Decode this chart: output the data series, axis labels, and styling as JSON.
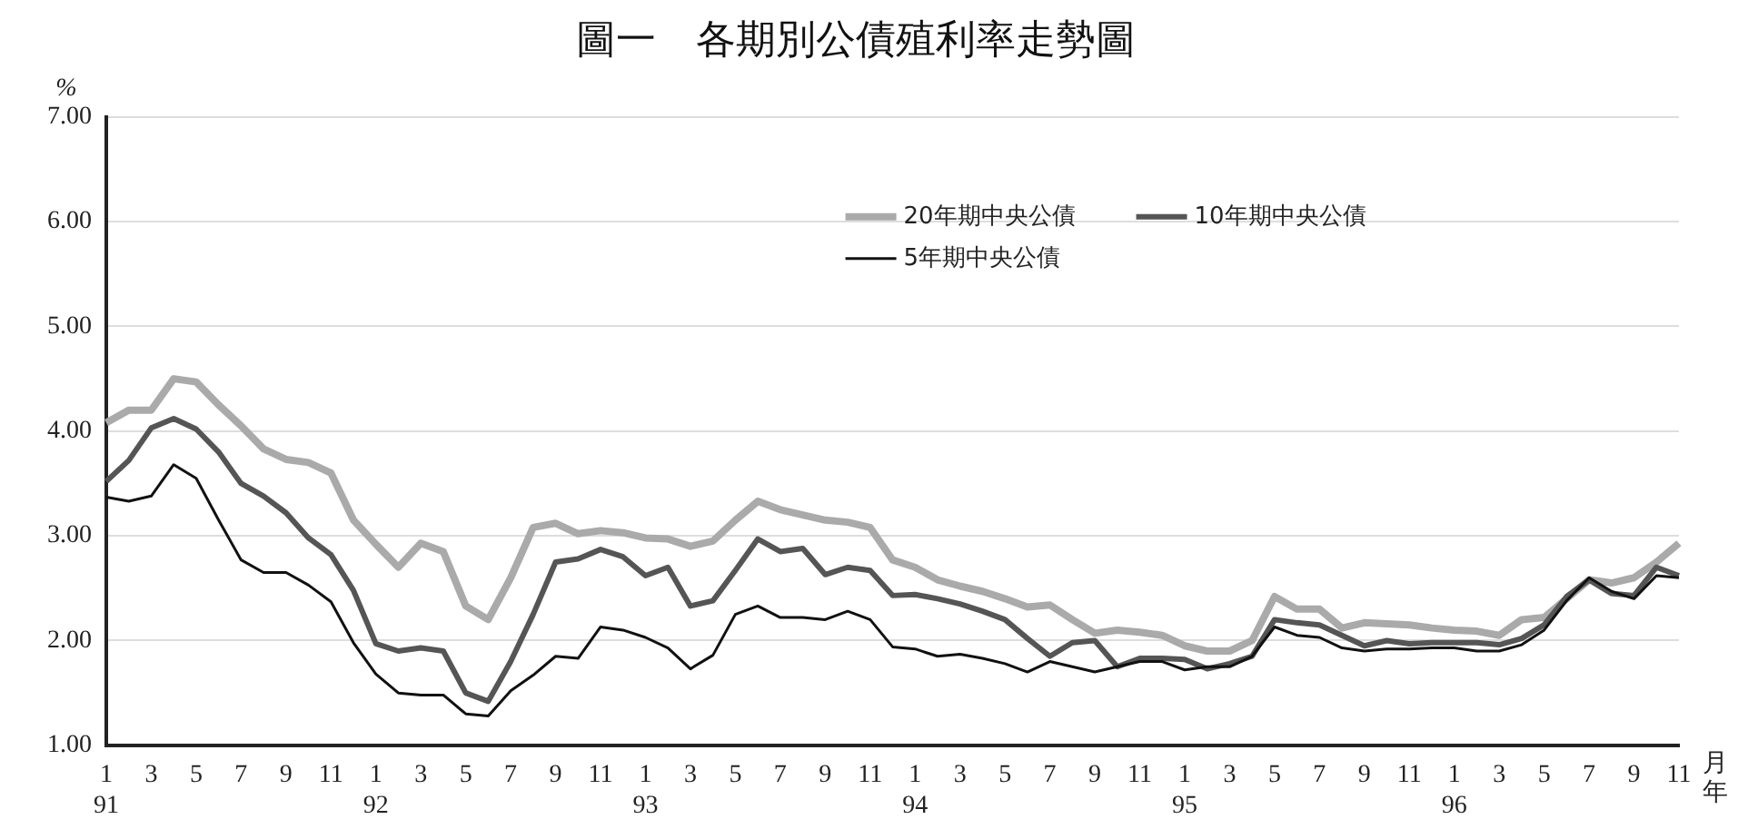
{
  "chart_data": {
    "type": "line",
    "title": "圖一　各期別公債殖利率走勢圖",
    "ylabel": "%",
    "xlabel": "月年",
    "categories": [
      "1\n91",
      null,
      "3",
      null,
      "5",
      null,
      "7",
      null,
      "9",
      null,
      "11",
      null,
      "1\n92",
      null,
      "3",
      null,
      "5",
      null,
      "7",
      null,
      "9",
      null,
      "11",
      null,
      "1\n93",
      null,
      "3",
      null,
      "5",
      null,
      "7",
      null,
      "9",
      null,
      "11",
      null,
      "1\n94",
      null,
      "3",
      null,
      "5",
      null,
      "7",
      null,
      "9",
      null,
      "11",
      null,
      "1\n95",
      null,
      "3",
      null,
      "5",
      null,
      "7",
      null,
      "9",
      null,
      "11",
      null,
      "1\n96",
      null,
      "3",
      null,
      "5",
      null,
      "7",
      null,
      "9",
      null,
      "11"
    ],
    "series": [
      {
        "name": "20年期中央公債",
        "color": "#aaaaaa",
        "values": [
          4.08,
          4.2,
          4.2,
          4.5,
          4.47,
          4.25,
          4.05,
          3.83,
          3.73,
          3.7,
          3.6,
          3.15,
          2.92,
          2.7,
          2.93,
          2.85,
          2.33,
          2.2,
          2.6,
          3.08,
          3.12,
          3.02,
          3.05,
          3.03,
          2.98,
          2.97,
          2.9,
          2.95,
          3.15,
          3.33,
          3.25,
          3.2,
          3.15,
          3.13,
          3.08,
          2.77,
          2.7,
          2.58,
          2.52,
          2.47,
          2.4,
          2.32,
          2.34,
          2.2,
          2.07,
          2.1,
          2.08,
          2.05,
          1.95,
          1.9,
          1.9,
          2.0,
          2.42,
          2.3,
          2.3,
          2.12,
          2.17,
          2.16,
          2.15,
          2.12,
          2.1,
          2.09,
          2.05,
          2.2,
          2.22,
          2.4,
          2.58,
          2.55,
          2.6,
          2.75,
          2.93
        ]
      },
      {
        "name": "10年期中央公債",
        "color": "#555555",
        "values": [
          3.52,
          3.72,
          4.03,
          4.12,
          4.02,
          3.8,
          3.5,
          3.38,
          3.22,
          2.98,
          2.82,
          2.48,
          1.97,
          1.9,
          1.93,
          1.9,
          1.5,
          1.42,
          1.8,
          2.25,
          2.75,
          2.78,
          2.87,
          2.8,
          2.62,
          2.7,
          2.33,
          2.38,
          2.67,
          2.97,
          2.85,
          2.88,
          2.63,
          2.7,
          2.67,
          2.43,
          2.44,
          2.4,
          2.35,
          2.28,
          2.2,
          2.02,
          1.85,
          1.98,
          2.0,
          1.75,
          1.83,
          1.83,
          1.82,
          1.73,
          1.78,
          1.85,
          2.2,
          2.17,
          2.15,
          2.05,
          1.95,
          2.0,
          1.97,
          1.98,
          1.98,
          1.98,
          1.96,
          2.02,
          2.15,
          2.42,
          2.58,
          2.45,
          2.43,
          2.7,
          2.62
        ]
      },
      {
        "name": "5年期中央公債",
        "color": "#111111",
        "values": [
          3.37,
          3.33,
          3.38,
          3.68,
          3.55,
          3.15,
          2.77,
          2.65,
          2.65,
          2.53,
          2.37,
          1.98,
          1.68,
          1.5,
          1.48,
          1.48,
          1.3,
          1.28,
          1.52,
          1.67,
          1.85,
          1.83,
          2.13,
          2.1,
          2.03,
          1.93,
          1.73,
          1.86,
          2.25,
          2.33,
          2.22,
          2.22,
          2.2,
          2.28,
          2.2,
          1.94,
          1.92,
          1.85,
          1.87,
          1.83,
          1.78,
          1.7,
          1.8,
          1.75,
          1.7,
          1.75,
          1.8,
          1.8,
          1.72,
          1.75,
          1.75,
          1.85,
          2.13,
          2.05,
          2.03,
          1.93,
          1.9,
          1.92,
          1.92,
          1.93,
          1.93,
          1.9,
          1.9,
          1.96,
          2.1,
          2.38,
          2.6,
          2.47,
          2.4,
          2.62,
          2.6
        ]
      }
    ],
    "ylim": [
      1,
      7
    ],
    "yticks": [
      {
        "value": 1,
        "label": "1.00"
      },
      {
        "value": 2,
        "label": "2.00"
      },
      {
        "value": 3,
        "label": "3.00"
      },
      {
        "value": 4,
        "label": "4.00"
      },
      {
        "value": 5,
        "label": "5.00"
      },
      {
        "value": 6,
        "label": "6.00"
      },
      {
        "value": 7,
        "label": "7.00"
      }
    ],
    "grid": "y",
    "legend": "top",
    "marker": "none",
    "line_style": "solid"
  }
}
